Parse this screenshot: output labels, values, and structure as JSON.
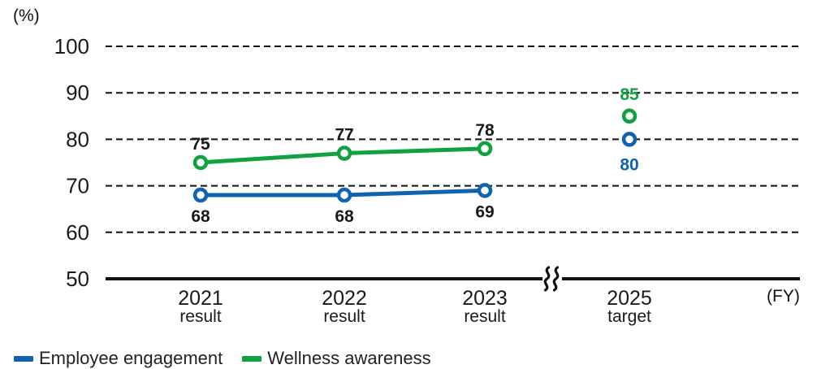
{
  "chart_data": {
    "type": "line",
    "title": "",
    "ylabel_unit": "(%)",
    "xlabel_unit": "(FY)",
    "ylim": [
      50,
      100
    ],
    "yticks": [
      50,
      60,
      70,
      80,
      90,
      100
    ],
    "grid": "horizontal-dashed",
    "categories": [
      {
        "line1": "2021",
        "line2": "result"
      },
      {
        "line1": "2022",
        "line2": "result"
      },
      {
        "line1": "2023",
        "line2": "result"
      },
      {
        "line1": "2025",
        "line2": "target"
      }
    ],
    "axis_break_between": [
      "2023 result",
      "2025 target"
    ],
    "target_category_index": 3,
    "result_label_color": "#1a1a1a",
    "axis_color": "#111111",
    "series": [
      {
        "name": "Employee engagement",
        "color": "#1063ae",
        "values": [
          68,
          68,
          69,
          80
        ],
        "label_side": "below"
      },
      {
        "name": "Wellness awareness",
        "color": "#12a141",
        "values": [
          75,
          77,
          78,
          85
        ],
        "label_side": "above"
      }
    ],
    "legend": {
      "position": "bottom-left",
      "entries": [
        "Employee engagement",
        "Wellness awareness"
      ]
    }
  }
}
